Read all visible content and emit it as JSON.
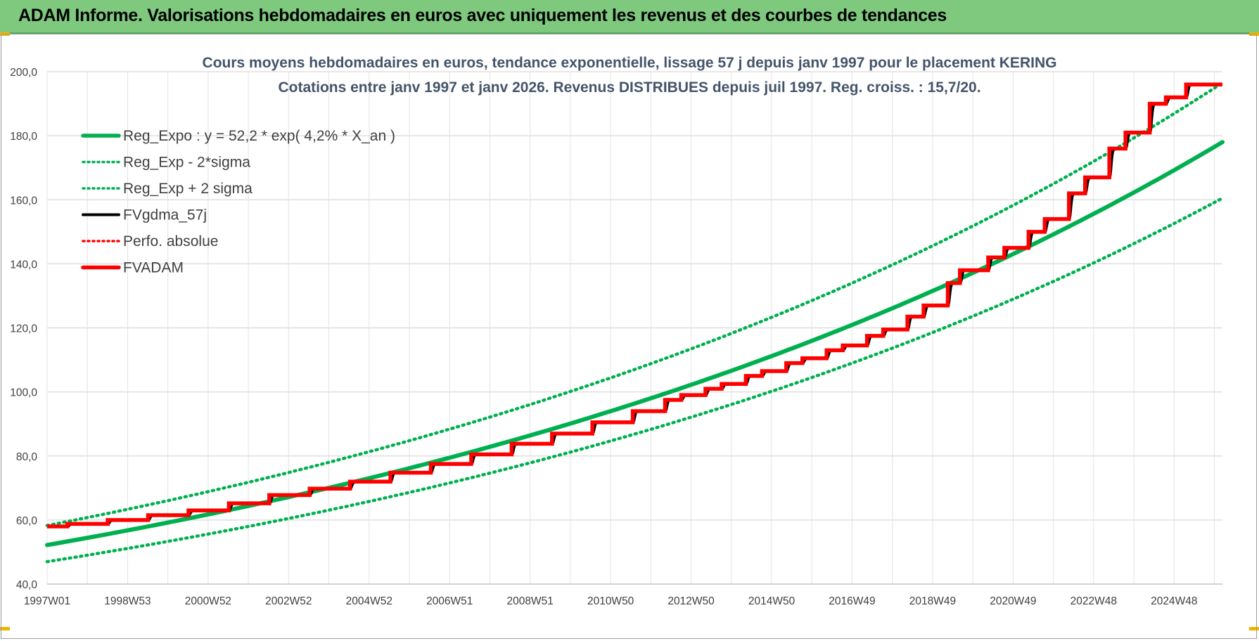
{
  "banner": {
    "title": "ADAM Informe. Valorisations hebdomadaires en euros avec uniquement les revenus et des courbes de tendances",
    "color": "#7fc97f"
  },
  "chart_data": {
    "type": "line",
    "title_line1": "Cours moyens hebdomadaires en euros, tendance exponentielle, lissage 57 j depuis janv 1997 pour le placement KERING",
    "title_line2": "Cotations entre janv 1997 et janv 2026. Revenus DISTRIBUES depuis juil 1997. Reg. croiss. : 15,7/20.",
    "x_tick_labels": [
      "1997W01",
      "1998W53",
      "2000W52",
      "2002W52",
      "2004W52",
      "2006W51",
      "2008W51",
      "2010W50",
      "2012W50",
      "2014W50",
      "2016W49",
      "2018W49",
      "2020W49",
      "2022W48",
      "2024W48"
    ],
    "y_tick_labels": [
      "40,0",
      "60,0",
      "80,0",
      "100,0",
      "120,0",
      "140,0",
      "160,0",
      "180,0",
      "200,0"
    ],
    "ylim": [
      40,
      200
    ],
    "x_year_range": [
      1997.0,
      2026.1
    ],
    "grid": true,
    "legend_position": "top-left",
    "legend": [
      {
        "label": "Reg_Expo : y = 52,2 * exp( 4,2% *  X_an )",
        "color": "#00b050",
        "style": "solid-thick"
      },
      {
        "label": "Reg_Exp - 2*sigma",
        "color": "#00b050",
        "style": "dotted"
      },
      {
        "label": "Reg_Exp + 2 sigma",
        "color": "#00b050",
        "style": "dotted"
      },
      {
        "label": "FVgdma_57j",
        "color": "#000000",
        "style": "solid"
      },
      {
        "label": "Perfo. absolue",
        "color": "#ff0000",
        "style": "dotted"
      },
      {
        "label": "FVADAM",
        "color": "#ff0000",
        "style": "solid-thick"
      }
    ],
    "series": [
      {
        "name": "Reg_Expo : y = 52,2 * exp( 4,2% *  X_an )",
        "x_start_year": 1997.0,
        "y_start": 52.2,
        "y_end": 178.0
      },
      {
        "name": "Reg_Exp - 2*sigma",
        "x_start_year": 1997.0,
        "y_start": 47.0,
        "y_end": 160.5
      },
      {
        "name": "Reg_Exp + 2 sigma",
        "x_start_year": 1997.0,
        "y_start": 58.3,
        "y_end": 196.5
      },
      {
        "name": "FVADAM",
        "step_years": [
          1997.0,
          1997.5,
          1998.5,
          1999.5,
          2000.5,
          2001.5,
          2002.5,
          2003.5,
          2004.5,
          2005.5,
          2006.5,
          2007.5,
          2008.5,
          2009.5,
          2010.5,
          2011.5,
          2012.3,
          2012.7,
          2013.3,
          2013.7,
          2014.3,
          2014.7,
          2015.3,
          2015.7,
          2016.3,
          2016.7,
          2017.3,
          2017.7,
          2018.3,
          2018.7,
          2019.3,
          2019.6,
          2020.3,
          2020.7,
          2021.3,
          2021.7,
          2022.3,
          2022.7,
          2023.3,
          2023.7,
          2024.3,
          2024.7,
          2025.2,
          2025.5
        ],
        "step_values": [
          58.0,
          58.8,
          60.0,
          61.5,
          63.0,
          65.2,
          67.8,
          69.8,
          72.0,
          74.8,
          77.5,
          80.5,
          83.8,
          87.0,
          90.5,
          94.0,
          97.5,
          99.0,
          101.0,
          102.5,
          105.0,
          106.5,
          109.0,
          110.5,
          113.0,
          114.5,
          117.5,
          119.5,
          123.5,
          127.0,
          134.0,
          138.0,
          142.0,
          145.0,
          150.0,
          154.0,
          162.0,
          167.0,
          176.0,
          181.0,
          190.0,
          192.0,
          196.0,
          196.0
        ],
        "x_end_year": 2026.1
      },
      {
        "name": "FVgdma_57j",
        "note_same_as": "FVADAM"
      }
    ]
  }
}
